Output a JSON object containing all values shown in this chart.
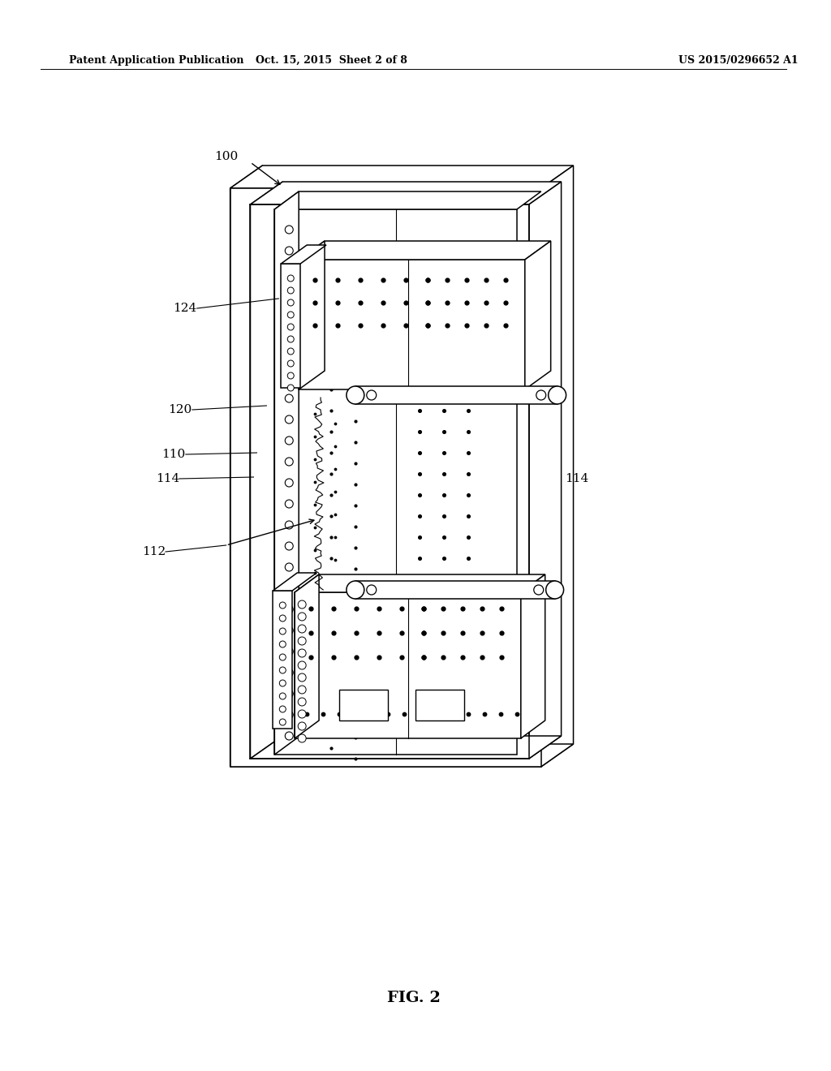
{
  "background_color": "#ffffff",
  "line_color": "#000000",
  "header_left": "Patent Application Publication",
  "header_mid": "Oct. 15, 2015  Sheet 2 of 8",
  "header_right": "US 2015/0296652 A1",
  "footer_label": "FIG. 2",
  "lw": 1.1,
  "dot_size": 6
}
